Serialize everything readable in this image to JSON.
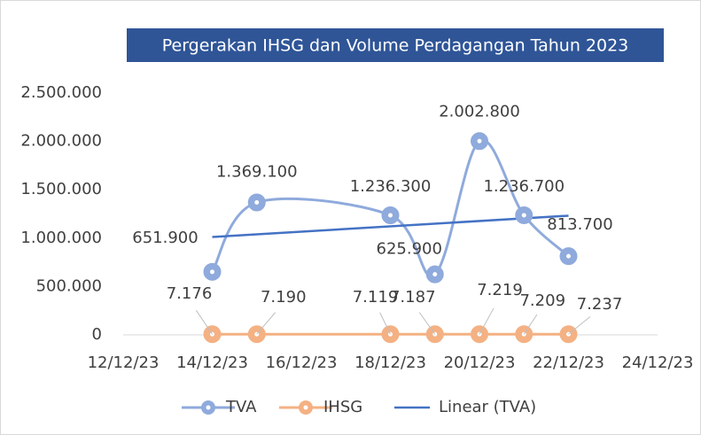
{
  "chart_data": {
    "type": "line",
    "title": "Pergerakan IHSG dan Volume Perdagangan Tahun 2023",
    "x": [
      "2023-12-14",
      "2023-12-15",
      "2023-12-18",
      "2023-12-19",
      "2023-12-20",
      "2023-12-21",
      "2023-12-22"
    ],
    "series": [
      {
        "name": "TVA",
        "color": "#8faadc",
        "values": [
          651900,
          1369100,
          1236300,
          625900,
          2002800,
          1236700,
          813700
        ],
        "value_labels": [
          "651.900",
          "1.369.100",
          "1.236.300",
          "625.900",
          "2.002.800",
          "1.236.700",
          "813.700"
        ],
        "smooth": true,
        "trendline": {
          "name": "Linear (TVA)",
          "color": "#4472c4"
        }
      },
      {
        "name": "IHSG",
        "color": "#f4b183",
        "values": [
          7176,
          7190,
          7119,
          7187,
          7219,
          7209,
          7237
        ],
        "value_labels": [
          "7.176",
          "7.190",
          "7.119",
          "7.187",
          "7.219",
          "7.209",
          "7.237"
        ],
        "smooth": false
      }
    ],
    "xlim": [
      "2023-12-12",
      "2023-12-24"
    ],
    "xticks": [
      {
        "value": "2023-12-12",
        "label": "12/12/23"
      },
      {
        "value": "2023-12-14",
        "label": "14/12/23"
      },
      {
        "value": "2023-12-16",
        "label": "16/12/23"
      },
      {
        "value": "2023-12-18",
        "label": "18/12/23"
      },
      {
        "value": "2023-12-20",
        "label": "20/12/23"
      },
      {
        "value": "2023-12-22",
        "label": "22/12/23"
      },
      {
        "value": "2023-12-24",
        "label": "24/12/23"
      }
    ],
    "ylim": [
      0,
      2500000
    ],
    "yticks": [
      0,
      {
        "value": 500000,
        "label": "500.000"
      },
      {
        "value": 1000000,
        "label": "1.000.000"
      },
      {
        "value": 1500000,
        "label": "1.500.000"
      },
      {
        "value": 2000000,
        "label": "2.000.000"
      },
      {
        "value": 2500000,
        "label": "2.500.000"
      }
    ],
    "grid": false,
    "legend": "bottom"
  }
}
